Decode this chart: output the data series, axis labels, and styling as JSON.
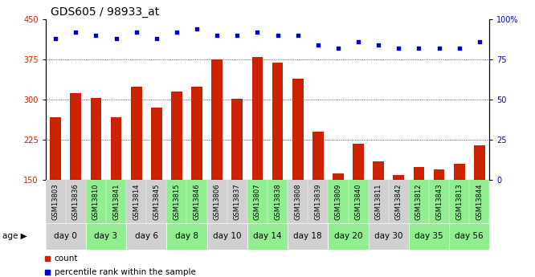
{
  "title": "GDS605 / 98933_at",
  "gsm_labels": [
    "GSM13803",
    "GSM13836",
    "GSM13810",
    "GSM13841",
    "GSM13814",
    "GSM13845",
    "GSM13815",
    "GSM13846",
    "GSM13806",
    "GSM13837",
    "GSM13807",
    "GSM13838",
    "GSM13808",
    "GSM13839",
    "GSM13809",
    "GSM13840",
    "GSM13811",
    "GSM13842",
    "GSM13812",
    "GSM13843",
    "GSM13813",
    "GSM13844"
  ],
  "age_groups": [
    {
      "label": "day 0",
      "start": 0,
      "end": 2,
      "color": "#d0d0d0"
    },
    {
      "label": "day 3",
      "start": 2,
      "end": 4,
      "color": "#90ee90"
    },
    {
      "label": "day 6",
      "start": 4,
      "end": 6,
      "color": "#d0d0d0"
    },
    {
      "label": "day 8",
      "start": 6,
      "end": 8,
      "color": "#90ee90"
    },
    {
      "label": "day 10",
      "start": 8,
      "end": 10,
      "color": "#d0d0d0"
    },
    {
      "label": "day 14",
      "start": 10,
      "end": 12,
      "color": "#90ee90"
    },
    {
      "label": "day 18",
      "start": 12,
      "end": 14,
      "color": "#d0d0d0"
    },
    {
      "label": "day 20",
      "start": 14,
      "end": 16,
      "color": "#90ee90"
    },
    {
      "label": "day 30",
      "start": 16,
      "end": 18,
      "color": "#d0d0d0"
    },
    {
      "label": "day 35",
      "start": 18,
      "end": 20,
      "color": "#90ee90"
    },
    {
      "label": "day 56",
      "start": 20,
      "end": 22,
      "color": "#90ee90"
    }
  ],
  "bar_values": [
    268,
    313,
    304,
    268,
    325,
    285,
    315,
    325,
    375,
    302,
    380,
    370,
    340,
    240,
    163,
    218,
    185,
    160,
    175,
    170,
    180,
    215
  ],
  "percentile_values": [
    88,
    92,
    90,
    88,
    92,
    88,
    92,
    94,
    90,
    90,
    92,
    90,
    90,
    84,
    82,
    86,
    84,
    82,
    82,
    82,
    82,
    86
  ],
  "bar_color": "#cc2200",
  "dot_color": "#0000cc",
  "ylim_left": [
    150,
    450
  ],
  "ylim_right": [
    0,
    100
  ],
  "yticks_left": [
    150,
    225,
    300,
    375,
    450
  ],
  "yticks_right": [
    0,
    25,
    50,
    75,
    100
  ],
  "grid_values": [
    225,
    300,
    375
  ],
  "legend_count_label": "count",
  "legend_pct_label": "percentile rank within the sample",
  "age_label": "age",
  "label_color_left": "#cc2200",
  "label_color_right": "#0000cc",
  "title_fontsize": 10,
  "tick_fontsize": 7,
  "age_fontsize": 7.5,
  "gsm_fontsize": 6,
  "legend_fontsize": 7.5
}
